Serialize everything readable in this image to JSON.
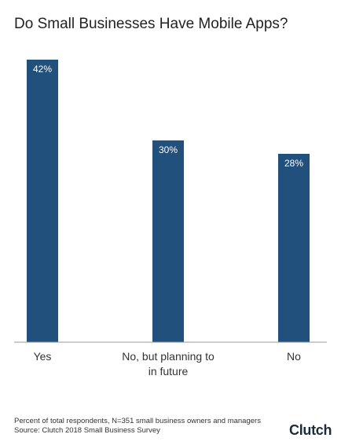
{
  "chart_data": {
    "type": "bar",
    "title": "Do Small Businesses Have Mobile Apps?",
    "categories": [
      "Yes",
      "No, but planning to in future",
      "No"
    ],
    "values": [
      42,
      30,
      28
    ],
    "value_labels": [
      "42%",
      "30%",
      "28%"
    ],
    "color": "#21507d",
    "footnote": "Percent of total respondents, N=351 small business owners and managers",
    "source": "Source: Clutch 2018 Small Business Survey",
    "brand": "Clutch"
  }
}
